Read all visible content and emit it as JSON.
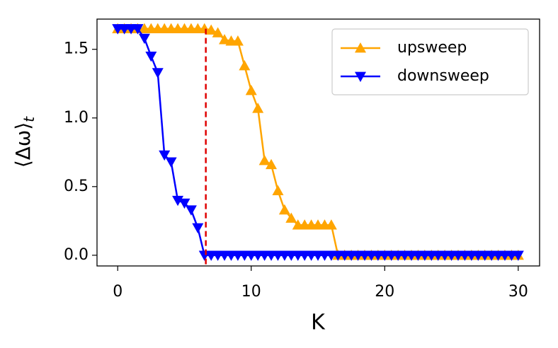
{
  "chart_data": {
    "type": "line",
    "xlabel": "K",
    "ylabel": {
      "main": "⟨Δω⟩",
      "sub": "t"
    },
    "x": [
      0,
      0.5,
      1,
      1.5,
      2,
      2.5,
      3,
      3.5,
      4,
      4.5,
      5,
      5.5,
      6,
      6.5,
      7,
      7.5,
      8,
      8.5,
      9,
      9.5,
      10,
      10.5,
      11,
      11.5,
      12,
      12.5,
      13,
      13.5,
      14,
      14.5,
      15,
      15.5,
      16,
      16.5,
      17,
      17.5,
      18,
      18.5,
      19,
      19.5,
      20,
      20.5,
      21,
      21.5,
      22,
      22.5,
      23,
      23.5,
      24,
      24.5,
      25,
      25.5,
      26,
      26.5,
      27,
      27.5,
      28,
      28.5,
      29,
      29.5,
      30
    ],
    "series": [
      {
        "name": "upsweep",
        "color": "#ffa500",
        "marker": "triangle-up",
        "values": [
          1.65,
          1.65,
          1.65,
          1.65,
          1.65,
          1.65,
          1.65,
          1.65,
          1.65,
          1.65,
          1.65,
          1.65,
          1.65,
          1.65,
          1.64,
          1.62,
          1.57,
          1.56,
          1.56,
          1.38,
          1.2,
          1.07,
          0.69,
          0.66,
          0.47,
          0.33,
          0.27,
          0.22,
          0.22,
          0.22,
          0.22,
          0.22,
          0.22,
          0,
          0,
          0,
          0,
          0,
          0,
          0,
          0,
          0,
          0,
          0,
          0,
          0,
          0,
          0,
          0,
          0,
          0,
          0,
          0,
          0,
          0,
          0,
          0,
          0,
          0,
          0,
          0
        ]
      },
      {
        "name": "downsweep",
        "color": "#0000ff",
        "marker": "triangle-down",
        "values": [
          1.65,
          1.65,
          1.65,
          1.65,
          1.58,
          1.45,
          1.33,
          0.73,
          0.68,
          0.4,
          0.38,
          0.33,
          0.2,
          0,
          0,
          0,
          0,
          0,
          0,
          0,
          0,
          0,
          0,
          0,
          0,
          0,
          0,
          0,
          0,
          0,
          0,
          0,
          0,
          0,
          0,
          0,
          0,
          0,
          0,
          0,
          0,
          0,
          0,
          0,
          0,
          0,
          0,
          0,
          0,
          0,
          0,
          0,
          0,
          0,
          0,
          0,
          0,
          0,
          0,
          0,
          0
        ]
      }
    ],
    "vline": {
      "x": 6.6,
      "color": "#e00000"
    },
    "xlim": [
      -1.55,
      31.6
    ],
    "ylim": [
      -0.078,
      1.72
    ],
    "xticks": [
      0,
      10,
      20,
      30
    ],
    "yticks": [
      {
        "value": 0,
        "label": "0.0"
      },
      0.5,
      {
        "value": 1,
        "label": "1.0"
      },
      1.5
    ],
    "legend": "upper right"
  }
}
